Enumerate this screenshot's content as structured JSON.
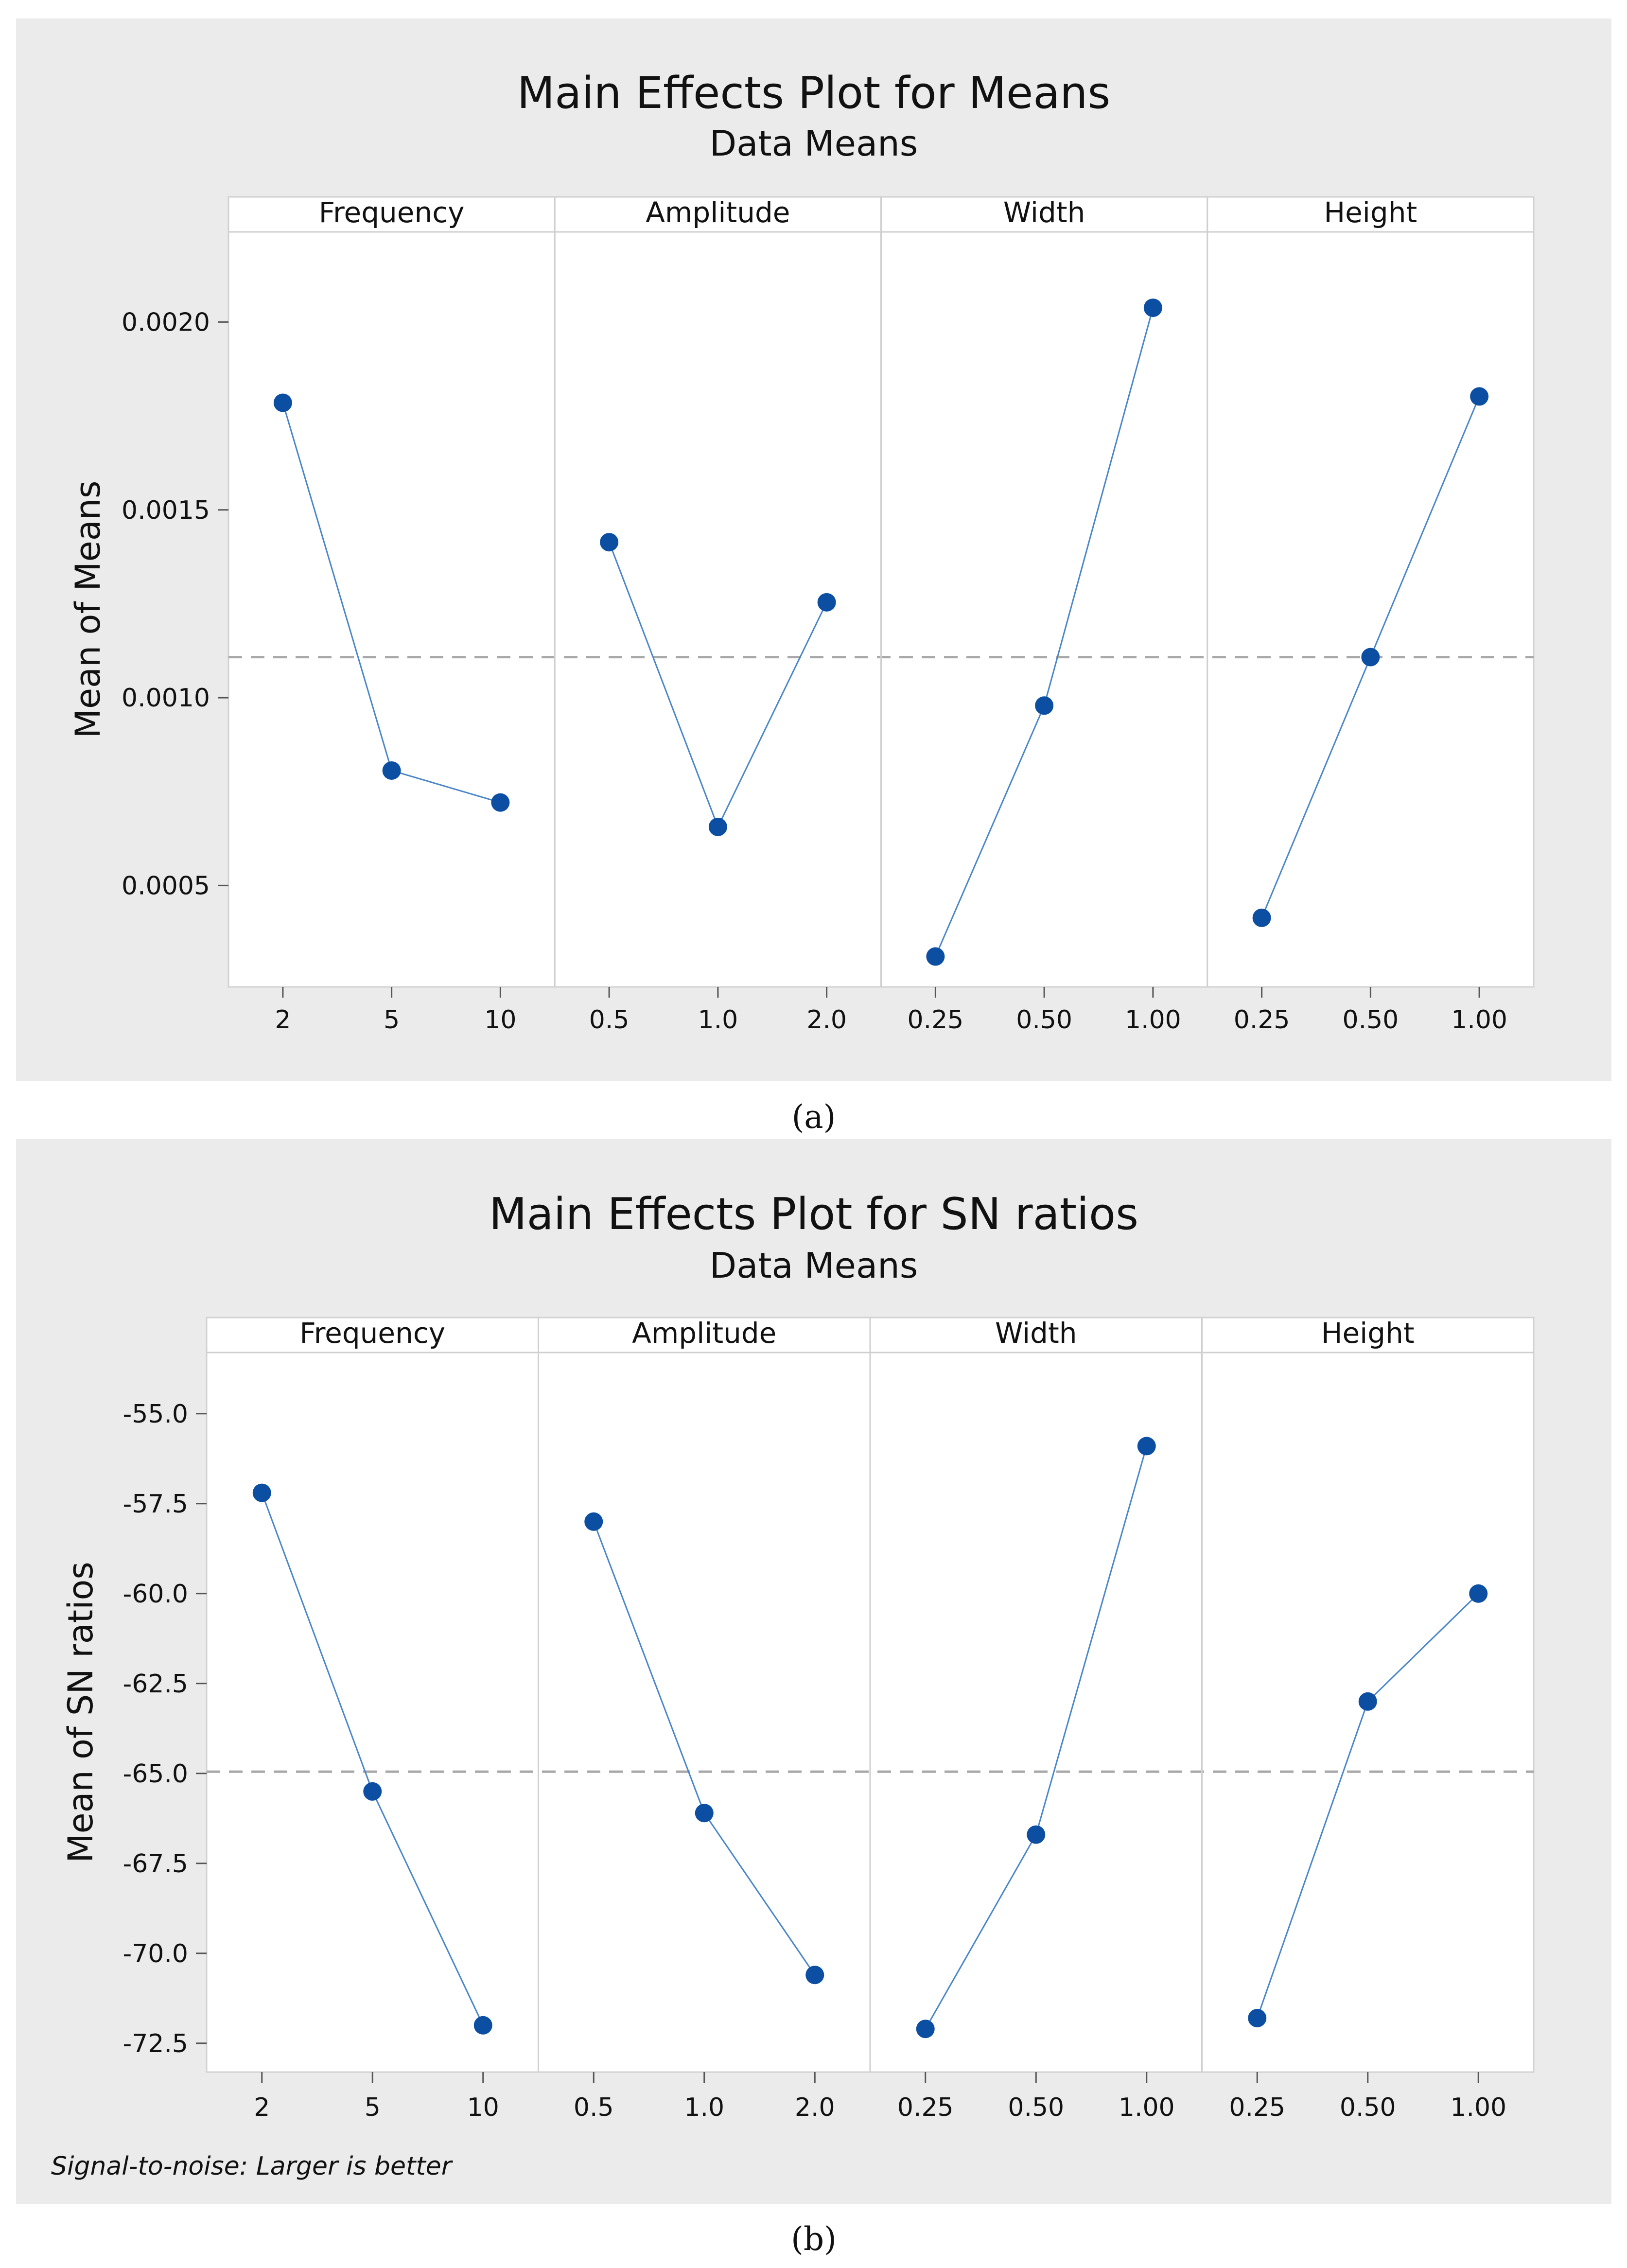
{
  "colors": {
    "panel_background": "#ebebeb",
    "plot_background": "#ffffff",
    "marker": "#0b4ea2",
    "line": "#4a86c9",
    "reference_line": "#a8a8a8",
    "divider": "#cfcfcf"
  },
  "chart_data": [
    {
      "id": "a",
      "type": "line",
      "title": "Main Effects Plot for Means",
      "subtitle": "Data Means",
      "ylabel": "Mean of Means",
      "ylim": [
        0.00023,
        0.00224
      ],
      "yticks": [
        "0.0005",
        "0.0010",
        "0.0015",
        "0.0020"
      ],
      "ytick_values": [
        0.0005,
        0.001,
        0.0015,
        0.002
      ],
      "reference_value": 0.001108,
      "caption": "(a)",
      "footnote": "",
      "facets": [
        {
          "name": "Frequency",
          "categories": [
            "2",
            "5",
            "10"
          ],
          "values": [
            0.001785,
            0.000806,
            0.000721
          ]
        },
        {
          "name": "Amplitude",
          "categories": [
            "0.5",
            "1.0",
            "2.0"
          ],
          "values": [
            0.001414,
            0.000656,
            0.001254
          ]
        },
        {
          "name": "Width",
          "categories": [
            "0.25",
            "0.50",
            "1.00"
          ],
          "values": [
            0.000311,
            0.000979,
            0.002038
          ]
        },
        {
          "name": "Height",
          "categories": [
            "0.25",
            "0.50",
            "1.00"
          ],
          "values": [
            0.000414,
            0.001108,
            0.001802
          ]
        }
      ]
    },
    {
      "id": "b",
      "type": "line",
      "title": "Main Effects Plot for SN ratios",
      "subtitle": "Data Means",
      "ylabel": "Mean of SN ratios",
      "ylim": [
        -73.3,
        -53.3
      ],
      "yticks": [
        "-72.5",
        "-70.0",
        "-67.5",
        "-65.0",
        "-62.5",
        "-60.0",
        "-57.5",
        "-55.0"
      ],
      "ytick_values": [
        -72.5,
        -70,
        -67.5,
        -65,
        -62.5,
        -60,
        -57.5,
        -55
      ],
      "reference_value": -64.95,
      "caption": "(b)",
      "footnote": "Signal-to-noise: Larger is better",
      "facets": [
        {
          "name": "Frequency",
          "categories": [
            "2",
            "5",
            "10"
          ],
          "values": [
            -57.2,
            -65.5,
            -72.0
          ]
        },
        {
          "name": "Amplitude",
          "categories": [
            "0.5",
            "1.0",
            "2.0"
          ],
          "values": [
            -58.0,
            -66.1,
            -70.6
          ]
        },
        {
          "name": "Width",
          "categories": [
            "0.25",
            "0.50",
            "1.00"
          ],
          "values": [
            -72.1,
            -66.7,
            -55.9
          ]
        },
        {
          "name": "Height",
          "categories": [
            "0.25",
            "0.50",
            "1.00"
          ],
          "values": [
            -71.8,
            -63.0,
            -60.0
          ]
        }
      ]
    }
  ]
}
